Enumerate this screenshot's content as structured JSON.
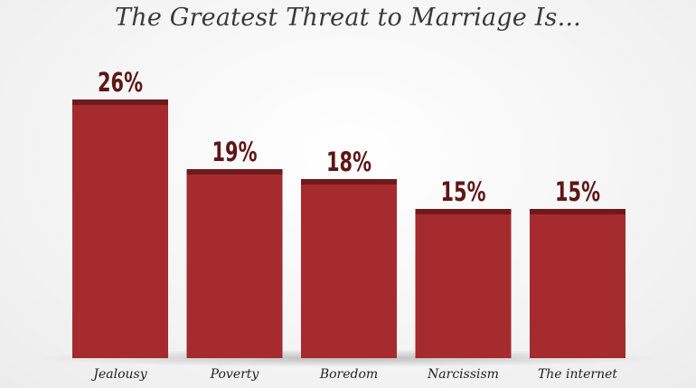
{
  "chart_data": {
    "type": "bar",
    "title": "The Greatest Threat to Marriage Is...",
    "categories": [
      "Jealousy",
      "Poverty",
      "Boredom",
      "Narcissism",
      "The internet"
    ],
    "values": [
      26,
      19,
      18,
      15,
      15
    ],
    "value_labels": [
      "26%",
      "19%",
      "18%",
      "15%",
      "15%"
    ],
    "xlabel": "",
    "ylabel": "",
    "ylim": [
      0,
      30
    ],
    "grid": false,
    "legend": "none"
  },
  "colors": {
    "bar": "#a52b2f",
    "bar_cap": "#6e1a1d",
    "value_text": "#5e1616"
  }
}
